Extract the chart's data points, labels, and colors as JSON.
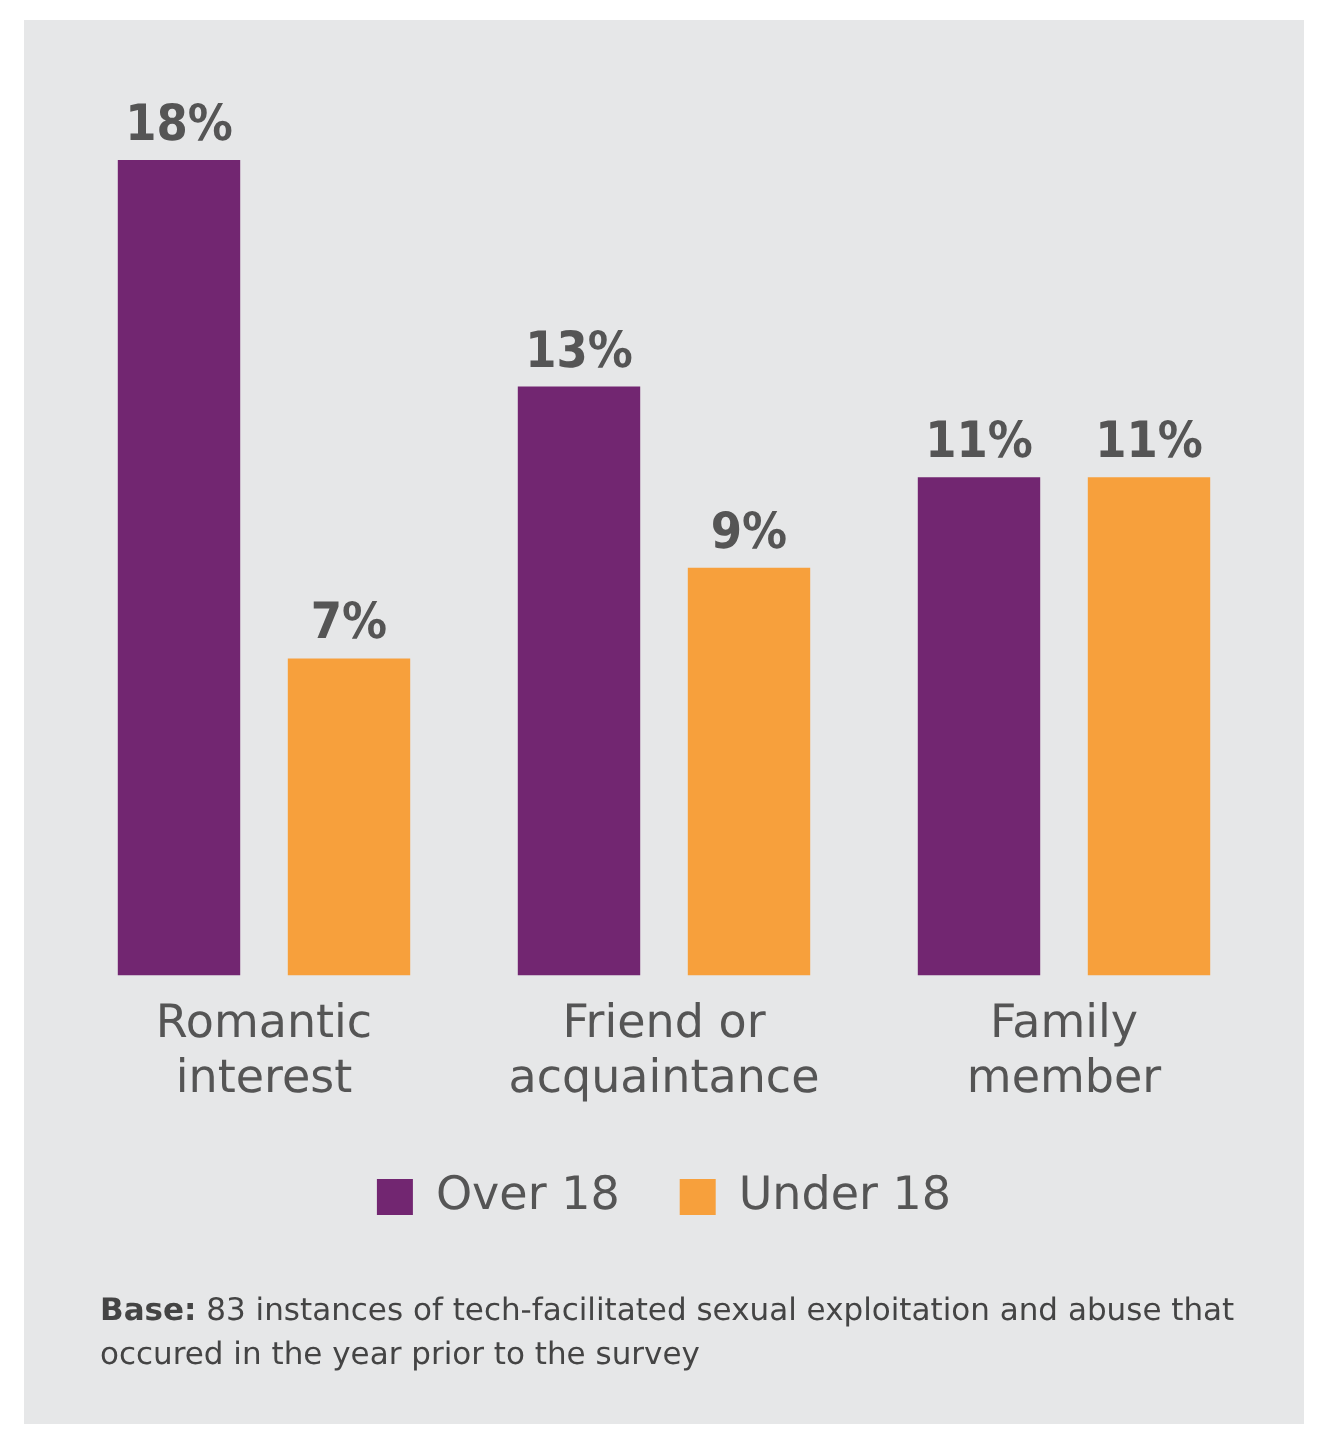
{
  "chart_data": {
    "type": "bar",
    "categories": [
      "Romantic interest",
      "Friend or acquaintance",
      "Family member"
    ],
    "series": [
      {
        "name": "Over 18",
        "color": "#722671",
        "values": [
          18,
          13,
          11
        ],
        "value_labels": [
          "18%",
          "13%",
          "11%"
        ]
      },
      {
        "name": "Under 18",
        "color": "#f7a03c",
        "values": [
          7,
          9,
          11
        ],
        "value_labels": [
          "7%",
          "9%",
          "11%"
        ]
      }
    ],
    "tick_labels": "x",
    "grid": false,
    "legend": "bottom",
    "annotations": [
      "Base: 83 instances of tech-facilitated sexual exploitation and abuse that occured in the year prior to the survey"
    ]
  }
}
